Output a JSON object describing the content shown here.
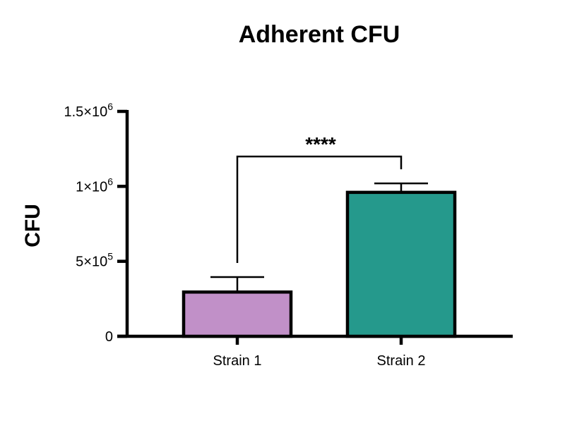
{
  "chart_data": {
    "type": "bar",
    "title": "Adherent CFU",
    "ylabel": "CFU",
    "xlabel": "",
    "categories": [
      "Strain 1",
      "Strain 2"
    ],
    "values": [
      295000,
      960000
    ],
    "errors": [
      100000,
      60000
    ],
    "colors": [
      "#C190C8",
      "#25998C"
    ],
    "ylim": [
      0,
      1500000
    ],
    "yticks": [
      {
        "value": 0,
        "base": "0",
        "exp": ""
      },
      {
        "value": 500000,
        "base": "5×10",
        "exp": "5"
      },
      {
        "value": 1000000,
        "base": "1×10",
        "exp": "6"
      },
      {
        "value": 1500000,
        "base": "1.5×10",
        "exp": "6"
      }
    ],
    "significance": {
      "label": "****",
      "from": 0,
      "to": 1
    },
    "grid": false,
    "legend": "none"
  }
}
